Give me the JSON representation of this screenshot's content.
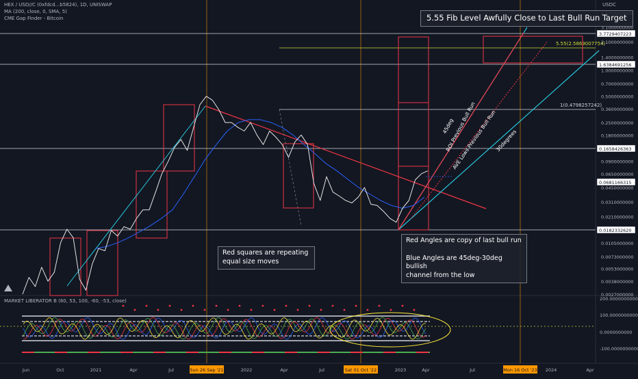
{
  "header": {
    "symbol_line": "HEX / USD//C (0xfdcd...b5824), 1D, UNISWAP",
    "ma_line": "MA (200, close, 0, SMA, 5)",
    "gap_line": "CME Gap Finder - Bitcoin",
    "currency": "USDC"
  },
  "osc_header": "MARKET LIBERATOR B (60, 53, 100, -60, -53, close)",
  "notes": {
    "title": "5.55 Fib Level Awfully Close to Last Bull Run Target",
    "red_squares": "Red squares are repeating\nequal size moves",
    "angles": "Red Angles are copy of last bull run\n\nBlue Angles are 45deg-30deg bullish\nchannel from the low"
  },
  "fib_labels": {
    "fib_555": "5.55(2.5869007754)",
    "fib_1": "1(0.4798257242)"
  },
  "line_labels": {
    "deg45": "45deg",
    "roi": "ROI Previous Bull Run",
    "ave": "AVE Lows Previous Bull Run",
    "deg30": "30degrees"
  },
  "price_axis": [
    "4.5000000000",
    "3.1000000000",
    "2.1000000000",
    "1.4000000000",
    "1.0000000000",
    "0.7000000000",
    "0.5000000000",
    "0.3600000000",
    "0.2500000000",
    "0.1800000000",
    "0.1300000000",
    "0.0900000000",
    "0.0650000000",
    "0.0450000000",
    "0.0310000000",
    "0.0210000000",
    "0.0150000000",
    "0.0105000000",
    "0.0073000000",
    "0.0053000000",
    "0.0038000000",
    "0.0027000000"
  ],
  "level_badges": [
    "3.7729407223",
    "1.6384691256",
    "0.1658426363",
    "0.0681166315",
    "0.0182332620"
  ],
  "osc_axis": [
    "200.0000000000",
    "100.0000000000",
    "0.0000000000",
    "-100.0000000000"
  ],
  "time_axis": [
    "Jun",
    "Oct",
    "2021",
    "Apr",
    "Jul",
    "2022",
    "Apr",
    "Jul",
    "2023",
    "Apr",
    "Jul",
    "2024",
    "Apr"
  ],
  "time_badges": [
    "Sun 26 Sep '21",
    "Sat 01 Oct '22",
    "Mon 16 Oct '23"
  ],
  "colors": {
    "background": "#131722",
    "price": "#e6e6e6",
    "ma": "#2962ff",
    "red": "#f23645",
    "teal": "#26c6da",
    "fib": "#cddc39",
    "vertical": "#ff9800",
    "badge": "#ffffff"
  },
  "chart_data": {
    "type": "line",
    "scale": "log",
    "series": [
      {
        "values": [
          0.0027,
          0.0042,
          0.0033,
          0.0055,
          0.0038,
          0.0048,
          0.0105,
          0.015,
          0.012,
          0.004,
          0.003,
          0.006,
          0.009,
          0.0085,
          0.0145,
          0.0125,
          0.016,
          0.015,
          0.02,
          0.025,
          0.025,
          0.04,
          0.065,
          0.09,
          0.13,
          0.16,
          0.12,
          0.22,
          0.4,
          0.5,
          0.45,
          0.35,
          0.25,
          0.25,
          0.22,
          0.2,
          0.25,
          0.18,
          0.14,
          0.2,
          0.17,
          0.14,
          0.1,
          0.15,
          0.18,
          0.14,
          0.05,
          0.032,
          0.06,
          0.04,
          0.036,
          0.032,
          0.03,
          0.035,
          0.045,
          0.029,
          0.028,
          0.024,
          0.02,
          0.018,
          0.026,
          0.032,
          0.055,
          0.065,
          0.07
        ]
      },
      {
        "name": "MA (200, close, 0, SMA, 5)",
        "values": [
          0.009,
          0.0095,
          0.0105,
          0.012,
          0.014,
          0.0165,
          0.02,
          0.025,
          0.038,
          0.06,
          0.095,
          0.14,
          0.2,
          0.25,
          0.27,
          0.27,
          0.25,
          0.22,
          0.18,
          0.14,
          0.11,
          0.085,
          0.07,
          0.056,
          0.045,
          0.038,
          0.032,
          0.028,
          0.026,
          0.028,
          0.035
        ]
      }
    ]
  }
}
